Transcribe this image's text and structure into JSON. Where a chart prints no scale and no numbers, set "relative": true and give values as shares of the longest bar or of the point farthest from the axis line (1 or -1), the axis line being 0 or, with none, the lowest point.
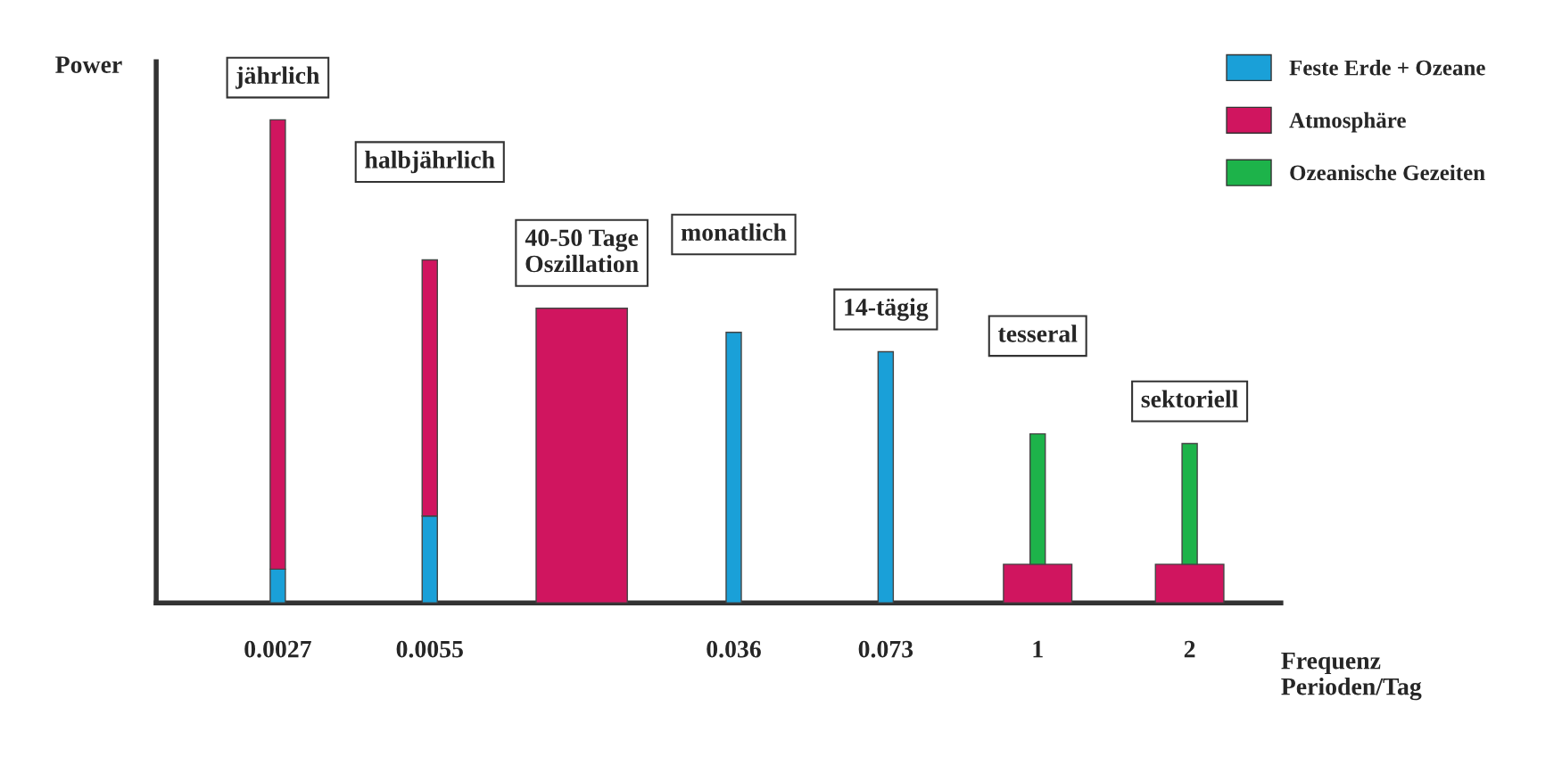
{
  "chart_data": {
    "type": "bar",
    "relative": true,
    "stacked": true,
    "ylabel": "Power",
    "xlabel": "Frequenz\nPerioden/Tag",
    "categories": [
      "0.0027",
      "0.0055",
      null,
      "0.036",
      "0.073",
      "1",
      "2"
    ],
    "series": [
      {
        "name": "Feste Erde + Ozeane",
        "color": "#1aa0d8",
        "values": [
          0.07,
          0.18,
          null,
          0.56,
          0.52,
          null,
          null
        ]
      },
      {
        "name": "Atmosphäre",
        "color": "#d0155f",
        "values": [
          0.93,
          0.53,
          0.61,
          null,
          null,
          0.08,
          0.08
        ]
      },
      {
        "name": "Ozeanische Gezeiten",
        "color": "#1db34a",
        "values": [
          null,
          null,
          null,
          null,
          null,
          0.27,
          0.25
        ]
      }
    ],
    "annotations": [
      "jährlich",
      "halbjährlich",
      "40-50 Tage\nOszillation",
      "monatlich",
      "14-tägig",
      "tesseral",
      "sektoriell"
    ],
    "legend": "top right",
    "grid": false
  }
}
